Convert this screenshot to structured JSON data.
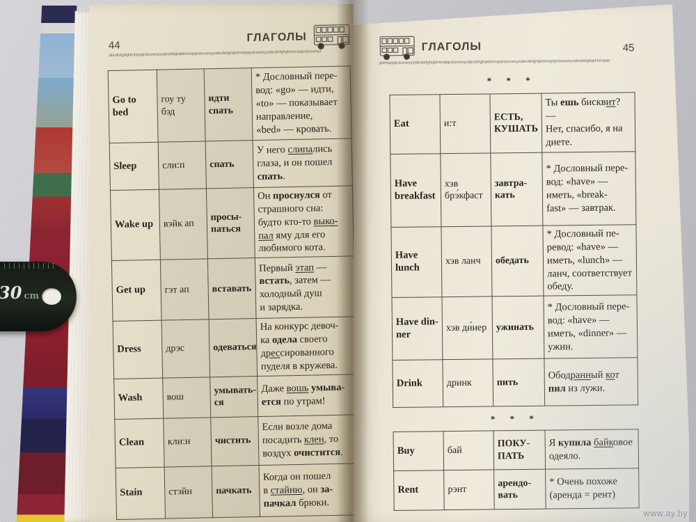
{
  "watermark": {
    "text": "www.ay.by"
  },
  "ruler": {
    "number": "30",
    "unit": "cm"
  },
  "left_page": {
    "page_number": "44",
    "header_title": "ГЛАГОЛЫ",
    "alphabet_line": "abcdefghijklmnopqrstuvwxyzabcdefghijklmnopqrstuvwxyzabcdefghijklmnopqrstuvwxyzabcdefghijklmnopqrstuvwxyz",
    "rows": [
      {
        "en": "Go to bed",
        "tr": "гоу ту бэд",
        "ru": "идти\nспать",
        "note": [
          {
            "t": "* Дословный пере-\nвод: «go» — идти,\n«to» — показывает\nнаправление,\n«bed» — кровать."
          }
        ]
      },
      {
        "en": "Sleep",
        "tr": "сли:п",
        "ru": "спать",
        "note": [
          {
            "t": "У него "
          },
          {
            "t": "слипа",
            "s": "u"
          },
          {
            "t": "лись\nглаза, и он пошел\n"
          },
          {
            "t": "спать",
            "s": "b"
          },
          {
            "t": "."
          }
        ]
      },
      {
        "en": "Wake up",
        "tr": "вэйк ап",
        "ru": "просы-\nпаться",
        "note": [
          {
            "t": "Он "
          },
          {
            "t": "проснулся",
            "s": "b"
          },
          {
            "t": " от\nстрашного сна:\nбудто кто-то "
          },
          {
            "t": "выко-\nпал",
            "s": "u"
          },
          {
            "t": " яму для его\nлюбимого кота."
          }
        ]
      },
      {
        "en": "Get up",
        "tr": "гэт ап",
        "ru": "вставать",
        "note": [
          {
            "t": "Первый "
          },
          {
            "t": "этап",
            "s": "u"
          },
          {
            "t": " —\n"
          },
          {
            "t": "встать",
            "s": "b"
          },
          {
            "t": ", затем —\nхолодный душ\nи зарядка."
          }
        ]
      },
      {
        "en": "Dress",
        "tr": "дрэс",
        "ru": "одеваться",
        "note": [
          {
            "t": "На конкурс девоч-\nка "
          },
          {
            "t": "одела",
            "s": "b"
          },
          {
            "t": " своего\n"
          },
          {
            "t": "дрес",
            "s": "u"
          },
          {
            "t": "сированного\nпуделя в кружева."
          }
        ]
      },
      {
        "en": "Wash",
        "tr": "вош",
        "ru": "умывать-\nся",
        "note": [
          {
            "t": "Даже "
          },
          {
            "t": "вошь",
            "s": "u"
          },
          {
            "t": " "
          },
          {
            "t": "умыва-\nется",
            "s": "b"
          },
          {
            "t": " по утрам!"
          }
        ]
      },
      {
        "en": "Clean",
        "tr": "кли:н",
        "ru": "чистить",
        "note": [
          {
            "t": "Если возле дома\nпосадить "
          },
          {
            "t": "клен",
            "s": "u"
          },
          {
            "t": ", то\nвоздух "
          },
          {
            "t": "очистится",
            "s": "b"
          },
          {
            "t": "."
          }
        ]
      },
      {
        "en": "Stain",
        "tr": "стэйн",
        "ru": "пачкать",
        "note": [
          {
            "t": "Когда он пошел\nв "
          },
          {
            "t": "стайню",
            "s": "u"
          },
          {
            "t": ", он "
          },
          {
            "t": "за-\nпачкал",
            "s": "b"
          },
          {
            "t": " брюки."
          }
        ]
      }
    ]
  },
  "right_page": {
    "page_number": "45",
    "header_title": "ГЛАГОЛЫ",
    "alphabet_line": "jklmnopqrstuvwxyzabcdefghijklmnopqrstuvwxyzabcdefghijklmnopqrstuvwxyzabcdefghijklmnopqrstuvwxyzabcdefghijklmnopqr",
    "separator1": "* * *",
    "separator2": "* * *",
    "table1": {
      "rows": [
        {
          "en": "Eat",
          "tr": "и:т",
          "ru": "ЕСТЬ,\nКУШАТЬ",
          "note": [
            {
              "t": "Ты "
            },
            {
              "t": "ешь",
              "s": "b"
            },
            {
              "t": " бискв"
            },
            {
              "t": "ит",
              "s": "u"
            },
            {
              "t": "? —\nНет, спасибо, я на\nдиете."
            }
          ]
        },
        {
          "en": "Have\nbreakfast",
          "tr": "хэв\nбрэ́кфаст",
          "ru": "завтра-\nкать",
          "note": [
            {
              "t": "* Дословный пере-\nвод: «have» —\nиметь, «break-\nfast» — завтрак."
            }
          ]
        },
        {
          "en": "Have\nlunch",
          "tr": "хэв ланч",
          "ru": "обедать",
          "note": [
            {
              "t": "* Дословный пе-\nревод: «have» —\nиметь, «lunch» —\nланч, соответствует\nобеду."
            }
          ]
        },
        {
          "en": "Have din-\nner",
          "tr": "хэв ди́нер",
          "ru": "ужинать",
          "note": [
            {
              "t": "* Дословный пере-\nвод: «have» —\nиметь, «dinner» —\nужин."
            }
          ]
        },
        {
          "en": "Drink",
          "tr": "дринк",
          "ru": "пить",
          "note": [
            {
              "t": "Обо"
            },
            {
              "t": "дранн",
              "s": "u"
            },
            {
              "t": "ый "
            },
            {
              "t": "ко",
              "s": "u"
            },
            {
              "t": "т\n"
            },
            {
              "t": "пил",
              "s": "b"
            },
            {
              "t": " из лужи."
            }
          ]
        }
      ]
    },
    "table2": {
      "rows": [
        {
          "en": "Buy",
          "tr": "бай",
          "ru": "ПОКУ-\nПАТЬ",
          "note": [
            {
              "t": "Я "
            },
            {
              "t": "купила",
              "s": "b"
            },
            {
              "t": " "
            },
            {
              "t": "байк",
              "s": "u"
            },
            {
              "t": "овое\nодеяло."
            }
          ]
        },
        {
          "en": "Rent",
          "tr": "рэнт",
          "ru": "арендо-\nвать",
          "note": [
            {
              "t": "* Очень похоже\n(аренда = рент)"
            }
          ]
        }
      ]
    }
  }
}
